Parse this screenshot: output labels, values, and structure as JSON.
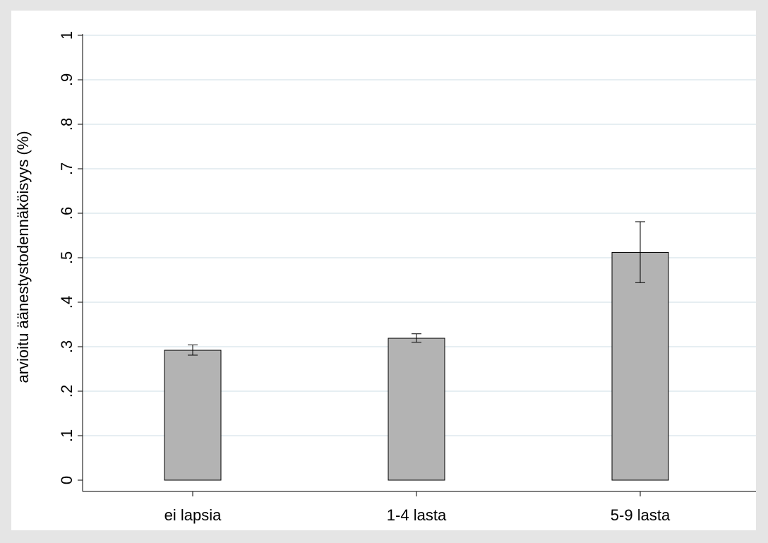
{
  "chart_data": {
    "type": "bar",
    "title": "",
    "xlabel": "",
    "ylabel": "arvioitu äänestystodennäköisyys (%)",
    "categories": [
      "ei lapsia",
      "1-4 lasta",
      "5-9 lasta"
    ],
    "values": [
      0.292,
      0.319,
      0.512
    ],
    "error_bars": [
      {
        "low": 0.281,
        "high": 0.304
      },
      {
        "low": 0.31,
        "high": 0.329
      },
      {
        "low": 0.444,
        "high": 0.581
      }
    ],
    "ylim": [
      0,
      1
    ],
    "y_ticks": [
      0,
      0.1,
      0.2,
      0.3,
      0.4,
      0.5,
      0.6,
      0.7,
      0.8,
      0.9,
      1
    ],
    "y_tick_labels": [
      "0",
      ".1",
      ".2",
      ".3",
      ".4",
      ".5",
      ".6",
      ".7",
      ".8",
      ".9",
      "1"
    ],
    "grid": true,
    "legend": "none",
    "colors": {
      "outer_background": "#e5e5e5",
      "plot_background": "#ffffff",
      "grid": "#e6eef2",
      "bar_fill": "#b3b3b3",
      "bar_stroke": "#000000"
    }
  }
}
